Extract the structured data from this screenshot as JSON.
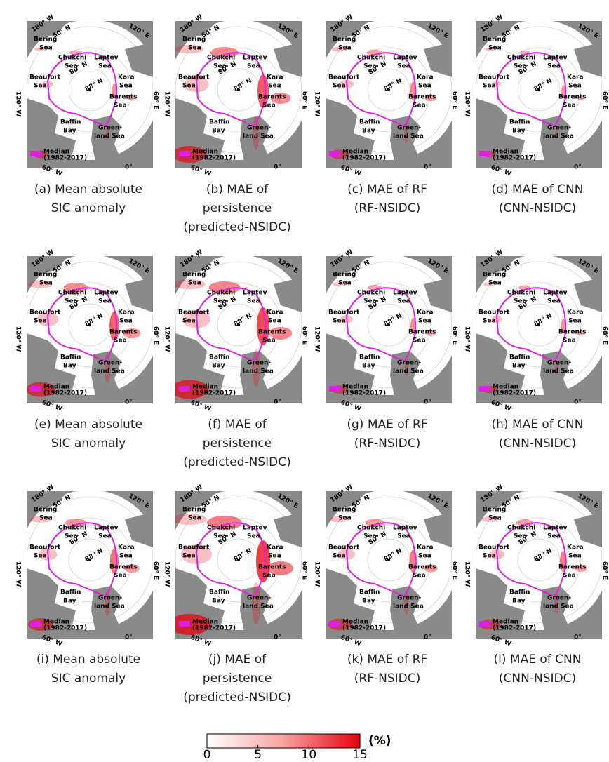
{
  "panels": [
    {
      "caption": [
        "(a) Mean absolute",
        "SIC anomaly"
      ]
    },
    {
      "caption": [
        "(b) MAE of",
        "persistence",
        "(predicted-NSIDC)"
      ]
    },
    {
      "caption": [
        "(c) MAE of RF",
        "(RF-NSIDC)"
      ]
    },
    {
      "caption": [
        "(d) MAE of CNN",
        "(CNN-NSIDC)"
      ]
    },
    {
      "caption": [
        "(e) Mean absolute",
        "SIC anomaly"
      ]
    },
    {
      "caption": [
        "(f) MAE of",
        "persistence",
        "(predicted-NSIDC)"
      ]
    },
    {
      "caption": [
        "(g) MAE of RF",
        "(RF-NSIDC)"
      ]
    },
    {
      "caption": [
        "(h) MAE of CNN",
        "(CNN-NSIDC)"
      ]
    },
    {
      "caption": [
        "(i) Mean absolute",
        "SIC anomaly"
      ]
    },
    {
      "caption": [
        "(j) MAE of",
        "persistence",
        "(predicted-NSIDC)"
      ]
    },
    {
      "caption": [
        "(k) MAE of RF",
        "(RF-NSIDC)"
      ]
    },
    {
      "caption": [
        "(l) MAE of CNN",
        "(CNN-NSIDC)"
      ]
    }
  ],
  "map_labels": [
    "180° W",
    "50° N",
    "120° E",
    "Bering",
    "Sea",
    "Chukchi",
    "Sea",
    "Laptev",
    "Sea",
    "Beaufort",
    "Sea",
    "80° N",
    "88° N",
    "Kara",
    "Sea",
    "Barents",
    "Sea",
    "120° W",
    "60° E",
    "Baffin",
    "Bay",
    "Green-",
    "land Sea",
    "Median",
    "(1982-2017)",
    "60° W",
    "0°"
  ],
  "colorbar": {
    "label": "(%)",
    "lim": [
      0,
      15
    ],
    "ticks": [
      0,
      5,
      10,
      15
    ]
  }
}
